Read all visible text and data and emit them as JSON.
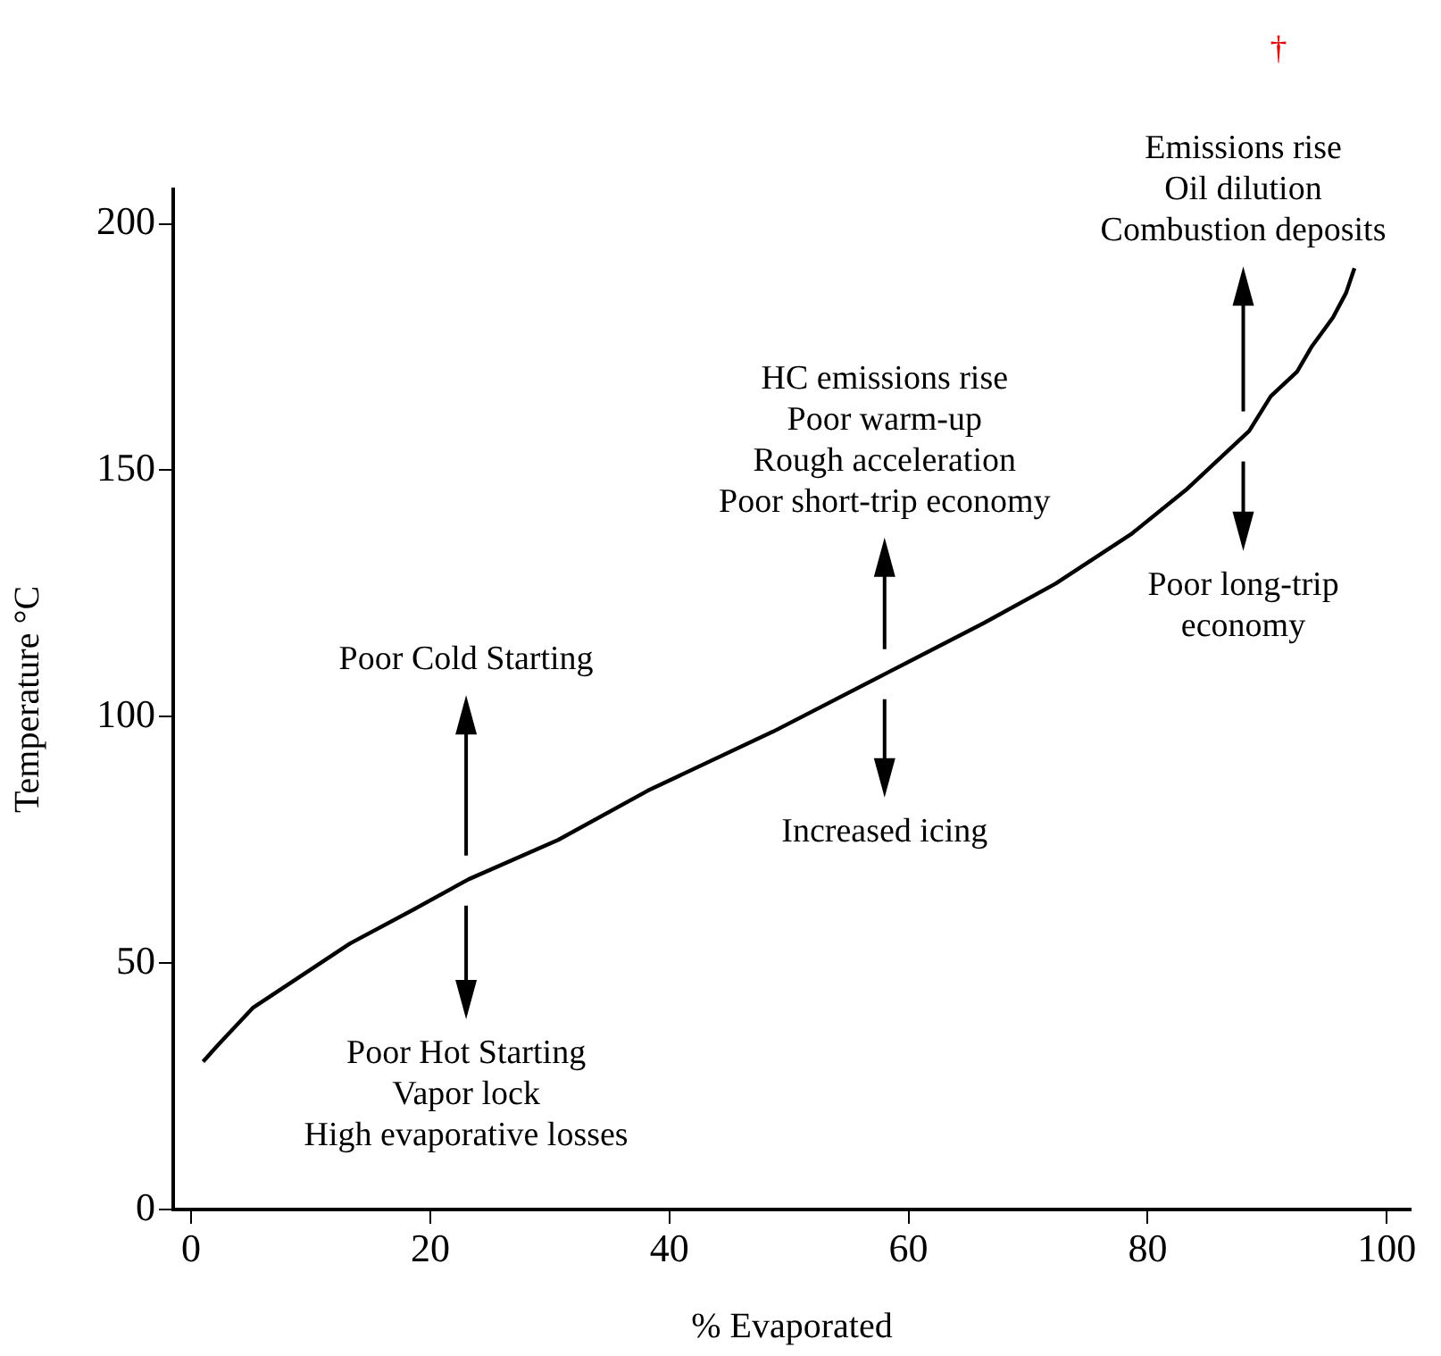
{
  "chart_data": {
    "type": "line",
    "xlabel": "% Evaporated",
    "ylabel": "Temperature °C",
    "xlim": [
      -1.5,
      102
    ],
    "ylim": [
      0,
      207
    ],
    "xticks": [
      0,
      20,
      40,
      60,
      80,
      100
    ],
    "yticks": [
      0,
      50,
      100,
      150,
      200
    ],
    "grid": false,
    "legend": false,
    "marker": "none",
    "line_style": "solid",
    "series": [
      {
        "color": "#000000",
        "x": [
          1,
          2.1,
          5.2,
          13.3,
          18.7,
          23.2,
          30.7,
          38.2,
          48.7,
          58.3,
          66.3,
          72.3,
          78.6,
          83.2,
          88.5,
          90.3,
          92.5,
          93.7,
          95.5,
          96.6,
          97.3
        ],
        "values": [
          30,
          33,
          41,
          54,
          61,
          67,
          75,
          85,
          97,
          109,
          119,
          127,
          137,
          146,
          158,
          165,
          170,
          175,
          181,
          186,
          191
        ]
      }
    ],
    "annotations": [
      "Poor Cold Starting",
      "Poor Hot Starting\nVapor lock\nHigh evaporative losses",
      "HC emissions rise\nPoor warm-up\nRough acceleration\nPoor short-trip economy",
      "Increased icing",
      "Emissions rise\nOil dilution\nCombustion deposits",
      "Poor long-trip\neconomy",
      "†"
    ]
  }
}
